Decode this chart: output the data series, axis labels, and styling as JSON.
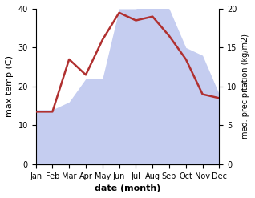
{
  "months": [
    "Jan",
    "Feb",
    "Mar",
    "Apr",
    "May",
    "Jun",
    "Jul",
    "Aug",
    "Sep",
    "Oct",
    "Nov",
    "Dec"
  ],
  "temperature": [
    13.5,
    13.5,
    27,
    23,
    32,
    39,
    37,
    38,
    33,
    27,
    18,
    17
  ],
  "precipitation": [
    7,
    7,
    8,
    11,
    11,
    20,
    20,
    21,
    20,
    15,
    14,
    9
  ],
  "temp_color": "#b03030",
  "precip_fill_color": "#c5cdf0",
  "xlabel": "date (month)",
  "ylabel_left": "max temp (C)",
  "ylabel_right": "med. precipitation (kg/m2)",
  "ylim_left": [
    0,
    40
  ],
  "ylim_right": [
    0,
    20
  ],
  "yticks_left": [
    0,
    10,
    20,
    30,
    40
  ],
  "yticks_right": [
    0,
    5,
    10,
    15,
    20
  ],
  "background_color": "#ffffff",
  "line_width": 1.8
}
